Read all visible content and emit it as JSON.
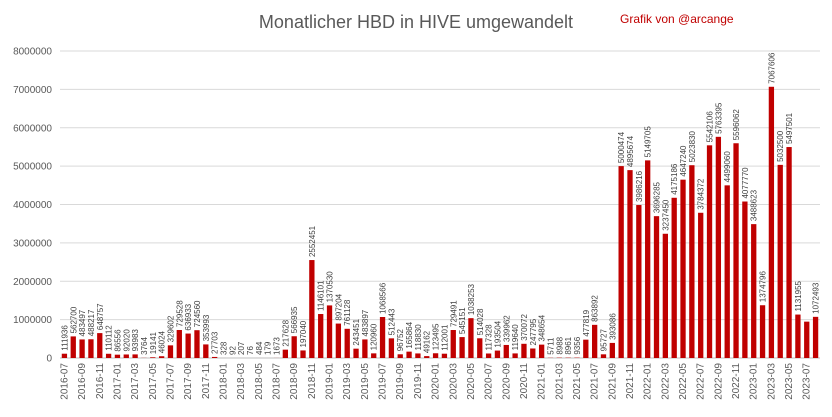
{
  "header": {
    "title": "Monatlicher HBD in HIVE umgewandelt",
    "credit": "Grafik von @arcange"
  },
  "chart_data": {
    "type": "bar",
    "title": "Monatlicher HBD in HIVE umgewandelt",
    "xlabel": "",
    "ylabel": "",
    "ylim": [
      0,
      8000000
    ],
    "y_ticks": [
      "0",
      "1000000",
      "2000000",
      "3000000",
      "4000000",
      "5000000",
      "6000000",
      "7000000",
      "8000000"
    ],
    "grid": true,
    "bar_color": "#c00000",
    "categories": [
      "2016-07",
      "2016-08",
      "2016-09",
      "2016-10",
      "2016-11",
      "2016-12",
      "2017-01",
      "2017-02",
      "2017-03",
      "2017-04",
      "2017-05",
      "2017-06",
      "2017-07",
      "2017-08",
      "2017-09",
      "2017-10",
      "2017-11",
      "2017-12",
      "2018-01",
      "2018-02",
      "2018-03",
      "2018-04",
      "2018-05",
      "2018-06",
      "2018-07",
      "2018-08",
      "2018-09",
      "2018-10",
      "2018-11",
      "2018-12",
      "2019-01",
      "2019-02",
      "2019-03",
      "2019-04",
      "2019-05",
      "2019-06",
      "2019-07",
      "2019-08",
      "2019-09",
      "2019-10",
      "2019-11",
      "2019-12",
      "2020-01",
      "2020-02",
      "2020-03",
      "2020-04",
      "2020-05",
      "2020-06",
      "2020-07",
      "2020-08",
      "2020-09",
      "2020-10",
      "2020-11",
      "2020-12",
      "2021-01",
      "2021-02",
      "2021-03",
      "2021-04",
      "2021-05",
      "2021-06",
      "2021-07",
      "2021-08",
      "2021-09",
      "2021-10",
      "2021-11",
      "2021-12",
      "2022-01",
      "2022-02",
      "2022-03",
      "2022-04",
      "2022-05",
      "2022-06",
      "2022-07",
      "2022-08",
      "2022-09",
      "2022-10",
      "2022-11",
      "2022-12",
      "2023-01",
      "2023-02",
      "2023-03",
      "2023-04",
      "2023-05",
      "2023-06",
      "2023-07",
      "2023-08"
    ],
    "x_tick_labels": [
      "2016-07",
      "2016-09",
      "2016-11",
      "2017-01",
      "2017-03",
      "2017-05",
      "2017-07",
      "2017-09",
      "2017-11",
      "2018-01",
      "2018-03",
      "2018-05",
      "2018-07",
      "2018-09",
      "2018-11",
      "2019-01",
      "2019-03",
      "2019-05",
      "2019-07",
      "2019-09",
      "2019-11",
      "2020-01",
      "2020-03",
      "2020-05",
      "2020-07",
      "2020-09",
      "2020-11",
      "2021-01",
      "2021-03",
      "2021-05",
      "2021-07",
      "2021-09",
      "2021-11",
      "2022-01",
      "2022-03",
      "2022-05",
      "2022-07",
      "2022-09",
      "2022-11",
      "2023-01",
      "2023-03",
      "2023-05",
      "2023-07"
    ],
    "values": [
      111936,
      562700,
      483497,
      488217,
      648757,
      110112,
      86556,
      92020,
      93983,
      3764,
      19141,
      46024,
      329602,
      729528,
      636933,
      724560,
      353993,
      27703,
      328,
      92,
      207,
      76,
      484,
      179,
      1673,
      217628,
      566935,
      197040,
      2552451,
      1146101,
      1370530,
      897204,
      761128,
      243451,
      483897,
      120960,
      1068566,
      512443,
      96752,
      165864,
      118830,
      49162,
      123495,
      112001,
      729491,
      545151,
      1038253,
      514028,
      117328,
      193504,
      339962,
      119640,
      370072,
      247795,
      348654,
      5711,
      8988,
      8961,
      9356,
      477819,
      863892,
      95727,
      393086,
      5000474,
      4895674,
      3986216,
      5149705,
      3696285,
      3237450,
      4175186,
      4647240,
      5023830,
      3784372,
      5542106,
      5763395,
      4499060,
      5596062,
      4077770,
      3488623,
      1374796,
      7067606,
      5032500,
      5497501,
      1131955,
      947693,
      1072493
    ],
    "data_labels": [
      "111936",
      "562700",
      "483497",
      "488217",
      "648757",
      "110112",
      "86556",
      "92020",
      "93983",
      "3764",
      "19141",
      "46024",
      "329602",
      "729528",
      "636933",
      "724560",
      "353993",
      "27703",
      "328",
      "92",
      "207",
      "76",
      "484",
      "179",
      "1673",
      "217628",
      "566935",
      "197040",
      "2552451",
      "1146101",
      "1370530",
      "897204",
      "761128",
      "243451",
      "483897",
      "120960",
      "1068566",
      "512443",
      "96752",
      "165864",
      "118830",
      "49162",
      "123495",
      "112001",
      "729491",
      "545151",
      "1038253",
      "514028",
      "117328",
      "193504",
      "339962",
      "119640",
      "370072",
      "247795",
      "348654",
      "5711",
      "8988",
      "8961",
      "9356",
      "477819",
      "863892",
      "95727",
      "393086",
      "5000474",
      "4895674",
      "3986216",
      "5149705",
      "3696285",
      "3237450",
      "4175186",
      "4647240",
      "5023830",
      "3784372",
      "5542106",
      "5763395",
      "4499060",
      "5596062",
      "4077770",
      "3488623",
      "1374796",
      "7067606",
      "5032500",
      "5497501",
      "1131955",
      "",
      "1072493"
    ]
  }
}
